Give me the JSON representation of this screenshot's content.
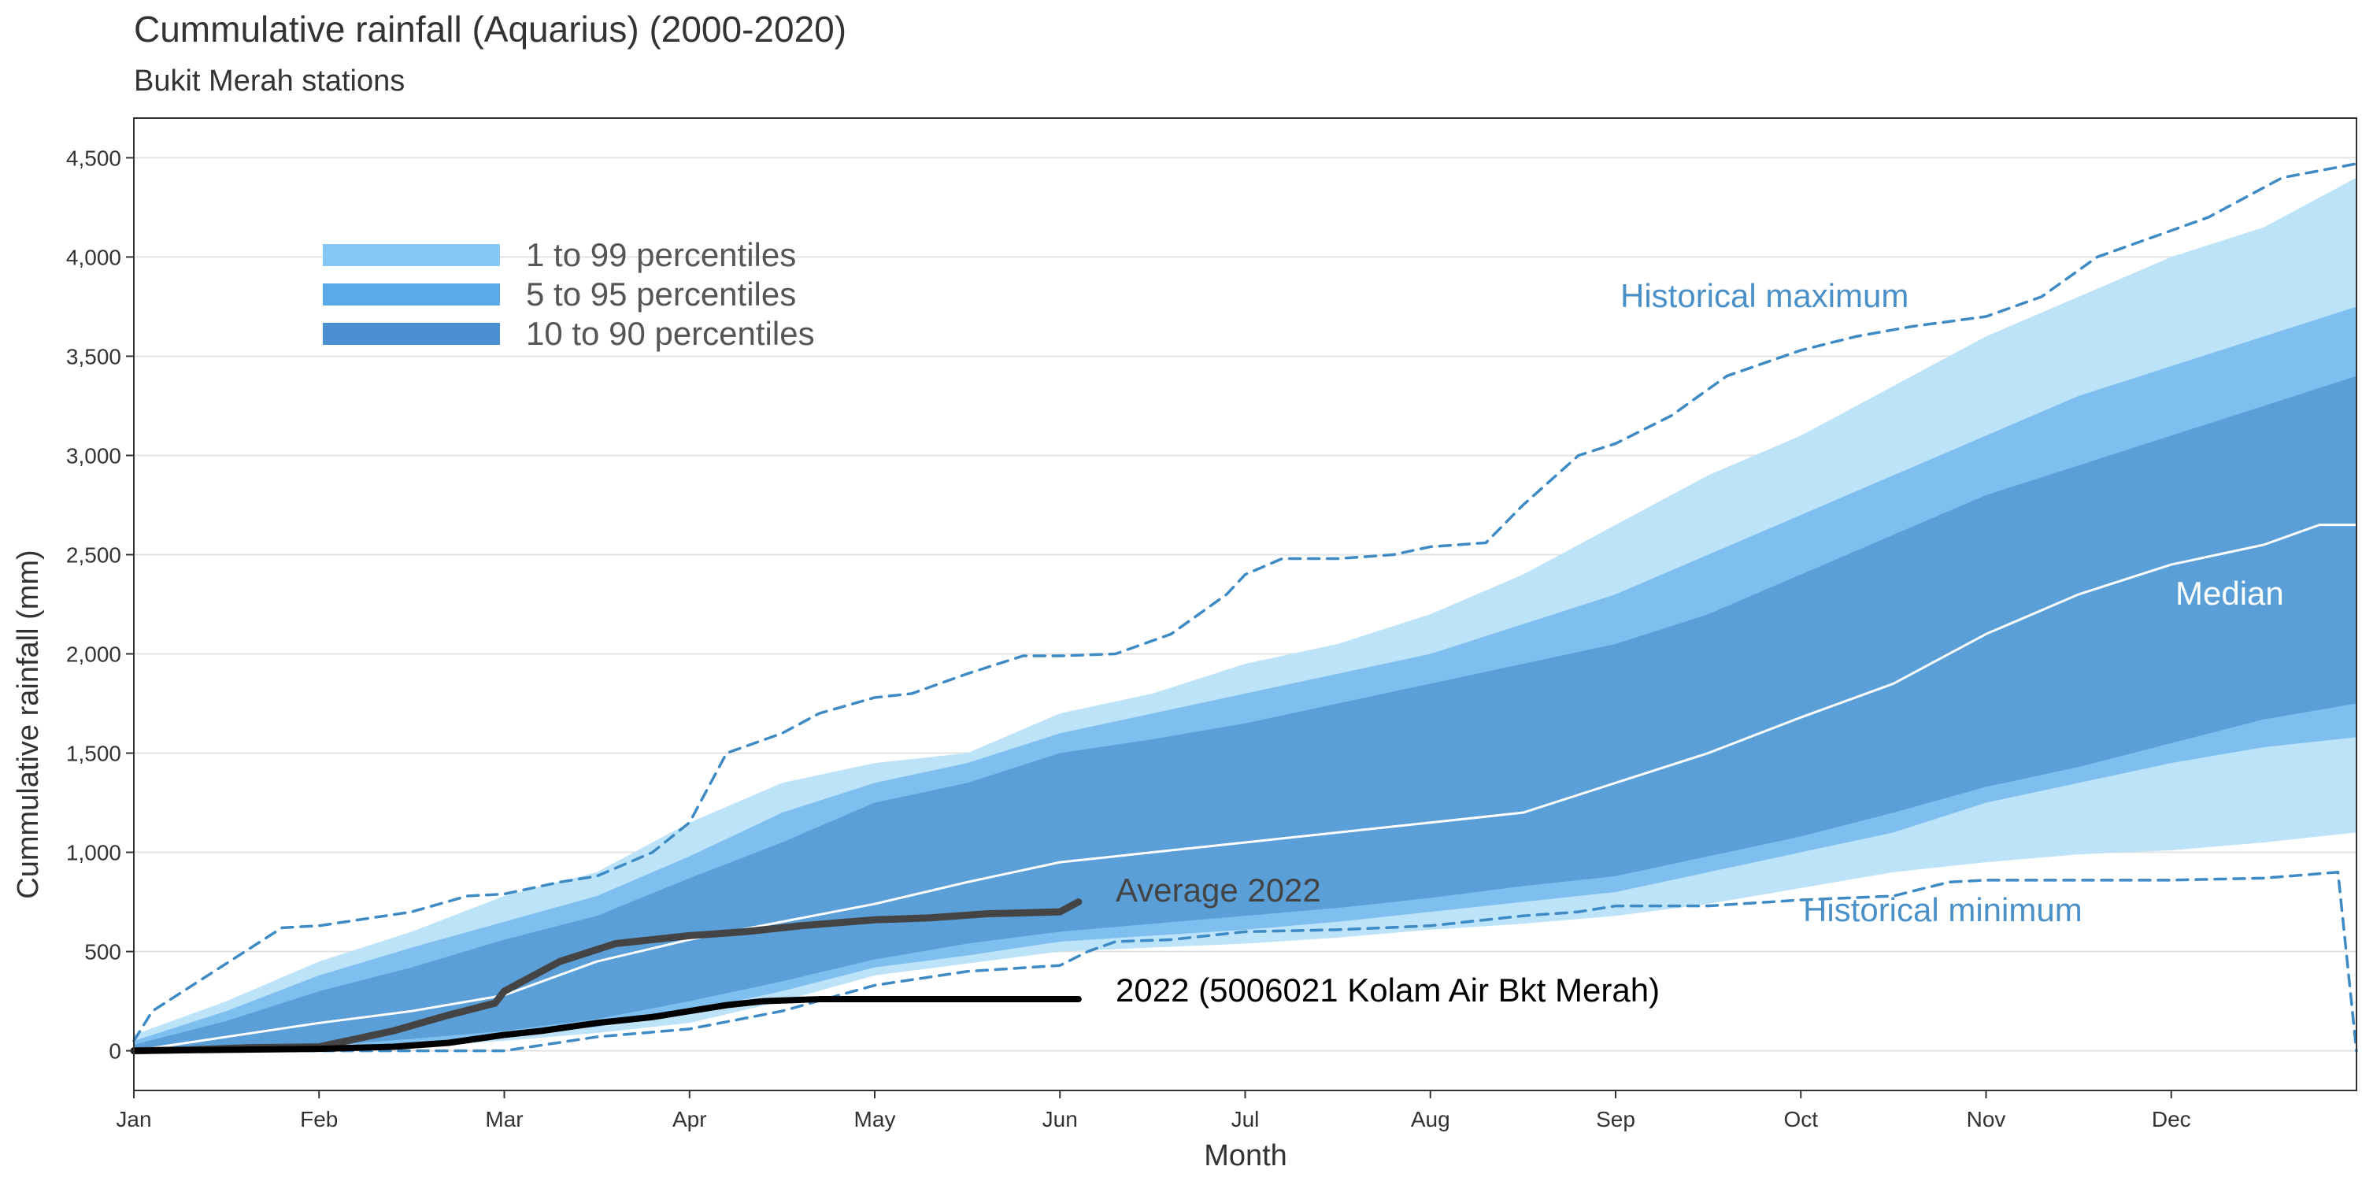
{
  "chart_data": {
    "type": "area",
    "title": "Cummulative rainfall (Aquarius) (2000-2020)",
    "subtitle": "Bukit Merah stations",
    "xlabel": "Month",
    "ylabel": "Cummulative rainfall (mm)",
    "ylim": [
      -200,
      4700
    ],
    "xlim": [
      0,
      12
    ],
    "yticks": [
      0,
      500,
      1000,
      1500,
      2000,
      2500,
      3000,
      3500,
      4000,
      4500
    ],
    "ytick_labels": [
      "0",
      "500",
      "1,000",
      "1,500",
      "2,000",
      "2,500",
      "3,000",
      "3,500",
      "4,000",
      "4,500"
    ],
    "xtick_labels": [
      "Jan",
      "Feb",
      "Mar",
      "Apr",
      "May",
      "Jun",
      "Jul",
      "Aug",
      "Sep",
      "Oct",
      "Nov",
      "Dec"
    ],
    "grid": true,
    "legend_position": "top-left",
    "legend": [
      {
        "label": "1 to 99 percentiles",
        "color": "#84c8f5"
      },
      {
        "label": "5 to 95 percentiles",
        "color": "#5aa9e8"
      },
      {
        "label": "10 to 90 percentiles",
        "color": "#4a8fd0"
      }
    ],
    "x": [
      0,
      0.5,
      1,
      1.5,
      2,
      2.5,
      3,
      3.5,
      4,
      4.5,
      5,
      5.5,
      6,
      6.5,
      7,
      7.5,
      8,
      8.5,
      9,
      9.5,
      10,
      10.5,
      11,
      11.5,
      12
    ],
    "bands": [
      {
        "name": "1 to 99 percentiles",
        "color": "#bde3f9",
        "lower": [
          0,
          0,
          10,
          20,
          50,
          90,
          140,
          250,
          380,
          440,
          500,
          520,
          540,
          570,
          610,
          640,
          680,
          740,
          820,
          900,
          950,
          990,
          1010,
          1050,
          1100
        ],
        "upper": [
          80,
          250,
          450,
          600,
          780,
          900,
          1150,
          1350,
          1450,
          1500,
          1700,
          1800,
          1950,
          2050,
          2200,
          2400,
          2650,
          2900,
          3100,
          3350,
          3600,
          3800,
          4000,
          4150,
          4400
        ]
      },
      {
        "name": "5 to 95 percentiles",
        "color": "#7fbff0",
        "lower": [
          0,
          0,
          15,
          40,
          80,
          120,
          200,
          300,
          420,
          480,
          550,
          580,
          610,
          650,
          700,
          750,
          800,
          900,
          1000,
          1100,
          1250,
          1350,
          1450,
          1530,
          1580
        ],
        "upper": [
          50,
          200,
          380,
          520,
          650,
          780,
          980,
          1200,
          1350,
          1450,
          1600,
          1700,
          1800,
          1900,
          2000,
          2150,
          2300,
          2500,
          2700,
          2900,
          3100,
          3300,
          3450,
          3600,
          3750
        ]
      },
      {
        "name": "10 to 90 percentiles",
        "color": "#5b9fd9",
        "lower": [
          0,
          5,
          25,
          60,
          100,
          160,
          250,
          350,
          460,
          540,
          600,
          640,
          680,
          720,
          770,
          830,
          880,
          980,
          1080,
          1200,
          1330,
          1430,
          1550,
          1670,
          1750
        ],
        "upper": [
          30,
          150,
          300,
          420,
          560,
          680,
          870,
          1050,
          1250,
          1350,
          1500,
          1570,
          1650,
          1750,
          1850,
          1950,
          2050,
          2200,
          2400,
          2600,
          2800,
          2950,
          3100,
          3250,
          3400
        ]
      }
    ],
    "series": [
      {
        "name": "Historical maximum",
        "style": "dashed",
        "color": "#3d8ac4",
        "x": [
          0,
          0.1,
          0.3,
          0.8,
          1.0,
          1.5,
          1.8,
          2.0,
          2.3,
          2.5,
          2.8,
          3.0,
          3.2,
          3.5,
          3.7,
          4.0,
          4.2,
          4.5,
          4.8,
          5.0,
          5.3,
          5.6,
          5.9,
          6.0,
          6.2,
          6.5,
          6.8,
          7.0,
          7.3,
          7.5,
          7.8,
          8.0,
          8.3,
          8.6,
          9.0,
          9.3,
          9.6,
          10.0,
          10.3,
          10.6,
          10.9,
          11.2,
          11.6,
          12.0
        ],
        "y": [
          50,
          200,
          320,
          620,
          630,
          700,
          780,
          790,
          850,
          880,
          1000,
          1150,
          1500,
          1600,
          1700,
          1780,
          1800,
          1900,
          1990,
          1990,
          2000,
          2100,
          2300,
          2400,
          2480,
          2480,
          2500,
          2540,
          2560,
          2750,
          3000,
          3060,
          3200,
          3400,
          3530,
          3600,
          3650,
          3700,
          3800,
          4000,
          4100,
          4200,
          4400,
          4470
        ]
      },
      {
        "name": "Historical minimum",
        "style": "dashed",
        "color": "#3d8ac4",
        "x": [
          0,
          0.5,
          1.0,
          1.5,
          2.0,
          2.5,
          3.0,
          3.5,
          4.0,
          4.5,
          5.0,
          5.15,
          5.3,
          5.6,
          6.0,
          6.5,
          7.0,
          7.5,
          7.8,
          8.0,
          8.5,
          9.0,
          9.5,
          9.8,
          10.0,
          10.5,
          11.0,
          11.5,
          11.9,
          12.0
        ],
        "y": [
          0,
          0,
          0,
          0,
          0,
          70,
          110,
          200,
          330,
          400,
          430,
          500,
          550,
          560,
          600,
          610,
          630,
          680,
          700,
          730,
          730,
          760,
          780,
          850,
          860,
          860,
          860,
          870,
          900,
          0
        ]
      },
      {
        "name": "Median",
        "style": "solid",
        "color": "#ffffff",
        "x": [
          0,
          0.5,
          1,
          1.5,
          2,
          2.5,
          3,
          3.5,
          4,
          4.5,
          5,
          5.5,
          6,
          6.5,
          7,
          7.5,
          8,
          8.5,
          9,
          9.5,
          10,
          10.5,
          11,
          11.5,
          11.8,
          12.0
        ],
        "y": [
          0,
          70,
          140,
          200,
          280,
          450,
          560,
          650,
          740,
          850,
          950,
          1000,
          1050,
          1100,
          1150,
          1200,
          1350,
          1500,
          1680,
          1850,
          2100,
          2300,
          2450,
          2550,
          2650,
          2650
        ]
      },
      {
        "name": "Average 2022",
        "style": "solid",
        "color": "#444444",
        "x": [
          0,
          0.3,
          0.6,
          1.0,
          1.2,
          1.4,
          1.7,
          1.95,
          2.0,
          2.1,
          2.3,
          2.6,
          3.0,
          3.3,
          3.6,
          4.0,
          4.3,
          4.6,
          5.0,
          5.1
        ],
        "y": [
          0,
          5,
          15,
          20,
          60,
          100,
          180,
          240,
          300,
          350,
          450,
          540,
          580,
          600,
          630,
          660,
          670,
          690,
          700,
          750
        ]
      },
      {
        "name": "2022 (5006021 Kolam Air Bkt Merah)",
        "style": "solid",
        "color": "#000000",
        "x": [
          0,
          0.5,
          1.0,
          1.4,
          1.7,
          2.0,
          2.2,
          2.5,
          2.8,
          3.0,
          3.2,
          3.4,
          3.7,
          4.0,
          4.5,
          5.0,
          5.1
        ],
        "y": [
          0,
          5,
          10,
          20,
          40,
          80,
          100,
          140,
          170,
          200,
          230,
          250,
          260,
          260,
          260,
          260,
          260
        ]
      }
    ],
    "annotations": [
      {
        "text": "Historical maximum",
        "color": "#4a90c8"
      },
      {
        "text": "Historical minimum",
        "color": "#4a90c8"
      },
      {
        "text": "Median",
        "color": "#ffffff"
      },
      {
        "text": "Average 2022",
        "color": "#444444"
      },
      {
        "text": "2022 (5006021 Kolam Air Bkt Merah)",
        "color": "#000000"
      }
    ]
  }
}
